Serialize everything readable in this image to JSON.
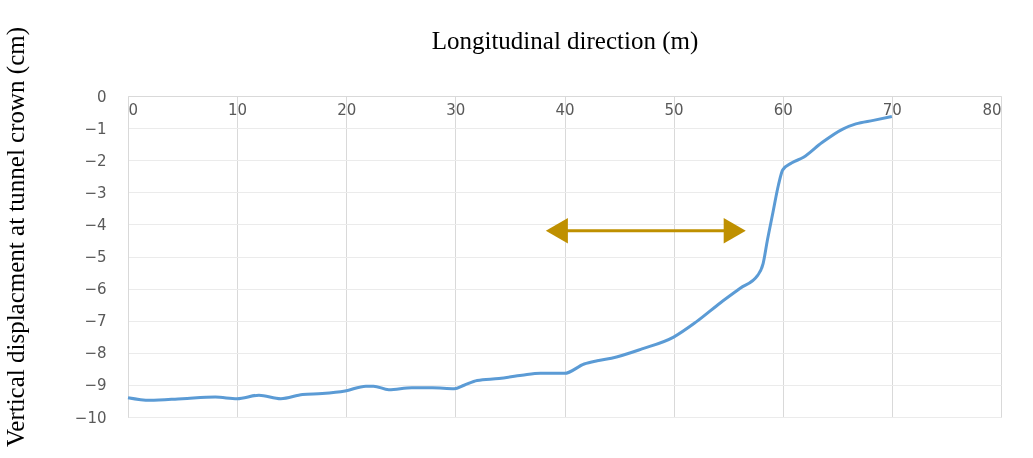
{
  "chart_data": {
    "type": "line",
    "xlabel": "Longitudinal direction (m)",
    "ylabel": "Vertical displacment at tunnel crown (cm)",
    "xlim": [
      0,
      80
    ],
    "xticks": [
      0,
      10,
      20,
      30,
      40,
      50,
      60,
      70,
      80
    ],
    "ylim": [
      -10,
      0
    ],
    "yticks": [
      0,
      -1,
      -2,
      -3,
      -4,
      -5,
      -6,
      -7,
      -8,
      -9,
      -10
    ],
    "grid": true,
    "series": [
      {
        "color": "#5b9bd5",
        "x": [
          0,
          2,
          5,
          8,
          10,
          12,
          14,
          16,
          17.8,
          19.9,
          21.8,
          22.5,
          23.9,
          26,
          27.9,
          29.9,
          30.8,
          32,
          34,
          36.1,
          37.8,
          40,
          41.8,
          43,
          44.3,
          47.1,
          50,
          52.1,
          54.3,
          56.1,
          57.7,
          58.2,
          58.6,
          59.1,
          59.6,
          60,
          60.8,
          61.9,
          63.6,
          65.5,
          66.7,
          68.3,
          70
        ],
        "values": [
          -9.4,
          -9.48,
          -9.43,
          -9.38,
          -9.43,
          -9.32,
          -9.43,
          -9.3,
          -9.27,
          -9.19,
          -9.04,
          -9.04,
          -9.15,
          -9.09,
          -9.09,
          -9.12,
          -9.01,
          -8.86,
          -8.8,
          -8.7,
          -8.64,
          -8.64,
          -8.35,
          -8.25,
          -8.17,
          -7.88,
          -7.51,
          -7.03,
          -6.44,
          -5.99,
          -5.59,
          -5.22,
          -4.48,
          -3.63,
          -2.78,
          -2.3,
          -2.09,
          -1.91,
          -1.45,
          -1.03,
          -0.87,
          -0.76,
          -0.64
        ]
      },
      {
        "type": "line",
        "color": "#bf9000",
        "marker": "triangle",
        "x": [
          39.3,
          55.6
        ],
        "values": [
          -4.2,
          -4.2
        ]
      }
    ]
  }
}
